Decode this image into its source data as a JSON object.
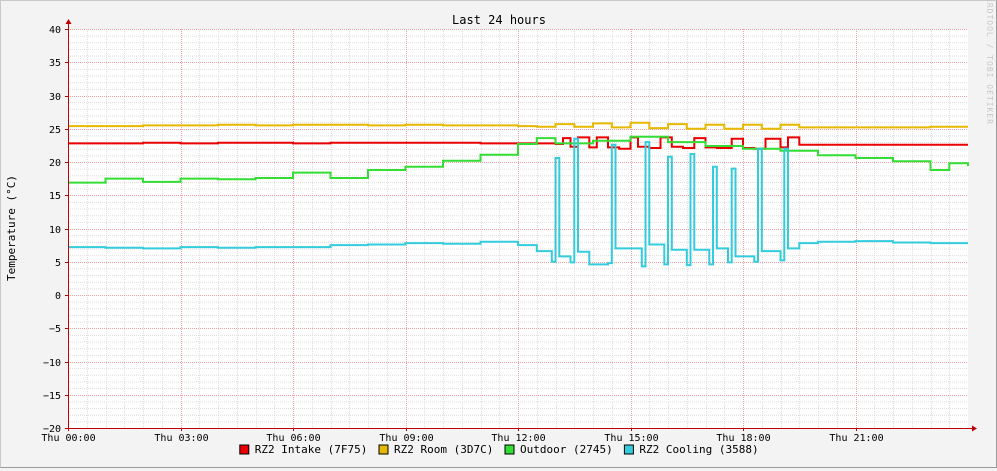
{
  "chart_data": {
    "type": "line",
    "title": "Last 24 hours",
    "ylabel": "Temperature (°C)",
    "xlabel": "",
    "watermark": "RRDTOOL / TOBI OETIKER",
    "ylim": [
      -20,
      40
    ],
    "y_ticks": [
      40,
      35,
      30,
      25,
      20,
      15,
      10,
      5,
      0,
      -5,
      -10,
      -15,
      -20
    ],
    "y_tick_labels": [
      "40",
      "35",
      "30",
      "25",
      "20",
      "15",
      "10",
      "5",
      "0",
      "−5",
      "−10",
      "−15",
      "−20"
    ],
    "xlim_hours": [
      0,
      24
    ],
    "x_ticks_hours": [
      0,
      3,
      6,
      9,
      12,
      15,
      18,
      21
    ],
    "x_tick_labels": [
      "Thu 00:00",
      "Thu 03:00",
      "Thu 06:00",
      "Thu 09:00",
      "Thu 12:00",
      "Thu 15:00",
      "Thu 18:00",
      "Thu 21:00"
    ],
    "grid": true,
    "legend_position": "bottom",
    "series": [
      {
        "name": "RZ2 Intake (7F75)",
        "color": "#ea0000",
        "x": [
          0,
          1,
          2,
          3,
          4,
          5,
          6,
          7,
          8,
          9,
          10,
          11,
          12,
          12.5,
          13,
          13.2,
          13.4,
          13.6,
          13.9,
          14.1,
          14.4,
          14.7,
          15,
          15.2,
          15.5,
          15.8,
          16.1,
          16.4,
          16.7,
          17,
          17.3,
          17.7,
          18,
          18.3,
          18.6,
          19,
          19.2,
          19.5,
          20,
          21,
          22,
          23,
          24
        ],
        "values": [
          22.8,
          22.8,
          22.9,
          22.8,
          22.9,
          22.9,
          22.8,
          22.9,
          22.9,
          22.9,
          22.9,
          22.8,
          22.8,
          22.8,
          22.7,
          23.6,
          22.3,
          23.7,
          22.2,
          23.7,
          22.2,
          22.0,
          23.7,
          22.3,
          22.1,
          23.7,
          22.3,
          22.1,
          23.6,
          22.2,
          22.1,
          23.5,
          22.1,
          22.0,
          23.5,
          22.2,
          23.7,
          22.6,
          22.6,
          22.6,
          22.6,
          22.6,
          22.6
        ]
      },
      {
        "name": "RZ2 Room (3D7C)",
        "color": "#e6b800",
        "x": [
          0,
          1,
          2,
          3,
          4,
          5,
          6,
          7,
          8,
          9,
          10,
          11,
          12,
          12.5,
          13,
          13.5,
          14,
          14.5,
          15,
          15.5,
          16,
          16.5,
          17,
          17.5,
          18,
          18.5,
          19,
          19.5,
          20,
          21,
          22,
          23,
          24
        ],
        "values": [
          25.4,
          25.4,
          25.5,
          25.5,
          25.6,
          25.5,
          25.6,
          25.6,
          25.5,
          25.6,
          25.5,
          25.5,
          25.4,
          25.3,
          25.7,
          25.3,
          25.8,
          25.2,
          25.9,
          25.1,
          25.7,
          25.0,
          25.6,
          25.0,
          25.6,
          25.0,
          25.6,
          25.2,
          25.2,
          25.2,
          25.2,
          25.3,
          25.3
        ]
      },
      {
        "name": "Outdoor (2745)",
        "color": "#33dd33",
        "x": [
          0,
          1,
          2,
          3,
          4,
          5,
          6,
          7,
          8,
          9,
          10,
          11,
          12,
          12.5,
          13,
          14,
          15,
          16,
          17,
          18,
          19,
          20,
          21,
          22,
          23,
          23.5,
          24
        ],
        "values": [
          16.9,
          17.5,
          17.0,
          17.5,
          17.4,
          17.6,
          18.4,
          17.6,
          18.8,
          19.3,
          20.2,
          21.1,
          22.7,
          23.6,
          22.8,
          23.2,
          23.8,
          23.0,
          22.4,
          22.0,
          21.7,
          21.0,
          20.6,
          20.1,
          18.8,
          19.8,
          19.4
        ]
      },
      {
        "name": "RZ2 Cooling (3588)",
        "color": "#33ccdd",
        "x": [
          0,
          1,
          2,
          3,
          4,
          5,
          6,
          7,
          8,
          9,
          10,
          11,
          12,
          12.5,
          12.9,
          13.0,
          13.1,
          13.4,
          13.5,
          13.6,
          13.9,
          14.4,
          14.5,
          14.6,
          15.3,
          15.4,
          15.5,
          15.9,
          16.0,
          16.1,
          16.5,
          16.6,
          16.7,
          17.1,
          17.2,
          17.3,
          17.6,
          17.7,
          17.8,
          18.3,
          18.4,
          18.5,
          19.0,
          19.1,
          19.2,
          19.5,
          20,
          21,
          22,
          23,
          24
        ],
        "values": [
          7.2,
          7.1,
          7.0,
          7.2,
          7.1,
          7.2,
          7.2,
          7.5,
          7.6,
          7.8,
          7.7,
          8.0,
          7.5,
          6.6,
          5.0,
          20.6,
          5.8,
          4.9,
          23.5,
          6.5,
          4.6,
          4.8,
          22.6,
          7.0,
          4.3,
          23.0,
          7.6,
          4.6,
          20.8,
          6.8,
          4.5,
          21.2,
          6.8,
          4.6,
          19.3,
          7.0,
          4.9,
          19.0,
          5.8,
          5.0,
          22.0,
          6.6,
          5.2,
          22.0,
          7.0,
          7.8,
          8.0,
          8.1,
          7.9,
          7.8,
          7.8
        ]
      }
    ]
  }
}
